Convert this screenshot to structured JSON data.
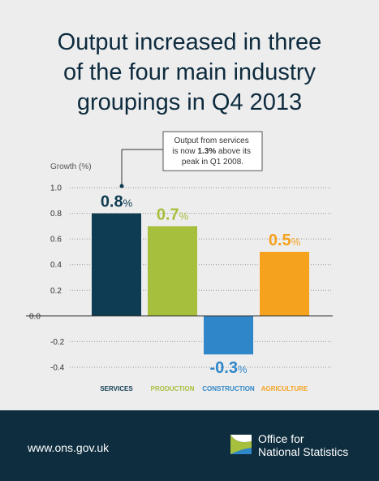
{
  "title": "Output increased in three\nof the four main industry\ngroupings in Q4 2013",
  "callout": {
    "line1": "Output from services",
    "line2_pre": "is now ",
    "line2_bold": "1.3%",
    "line2_post": " above its",
    "line3": "peak in Q1 2008."
  },
  "colors": {
    "services": "#0e3c52",
    "production": "#a6bf3c",
    "construction": "#2f86c9",
    "agriculture": "#f5a21f",
    "text": "#0d2b3e",
    "footer": "#0e2d3e"
  },
  "chart_data": {
    "type": "bar",
    "ylabel": "Growth (%)",
    "ylim": [
      -0.4,
      1.0
    ],
    "yticks": [
      "1.0",
      "0.8",
      "0.6",
      "0.4",
      "0.2",
      "0.0",
      "-0.2",
      "-0.4"
    ],
    "ytick_values": [
      1.0,
      0.8,
      0.6,
      0.4,
      0.2,
      0.0,
      -0.2,
      -0.4
    ],
    "grid": true,
    "categories": [
      "SERVICES",
      "PRODUCTION",
      "CONSTRUCTION",
      "AGRICULTURE"
    ],
    "values": [
      0.8,
      0.7,
      -0.3,
      0.5
    ],
    "value_labels": [
      "0.8",
      "0.7",
      "-0.3",
      "0.5"
    ],
    "unit": "%",
    "bar_colors": [
      "#0e3c52",
      "#a6bf3c",
      "#2f86c9",
      "#f5a21f"
    ]
  },
  "footer": {
    "url": "www.ons.gov.uk",
    "org_line1": "Office for",
    "org_line2": "National Statistics"
  }
}
